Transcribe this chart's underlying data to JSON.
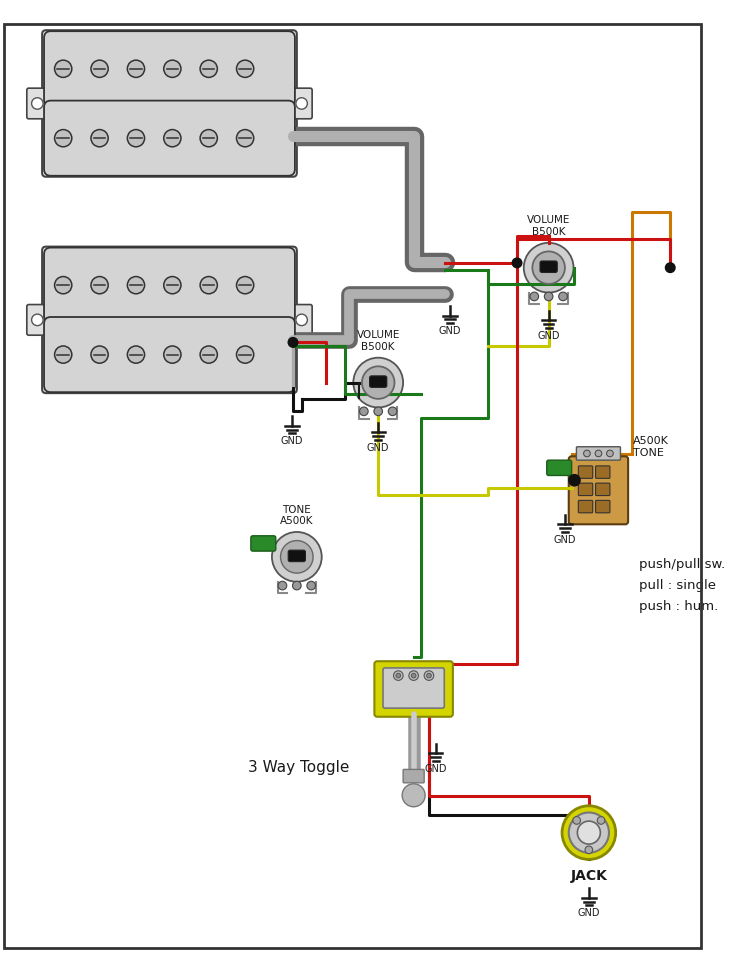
{
  "bg_color": "#ffffff",
  "lc": "#1a1a1a",
  "pickup_fill": "#d4d4d4",
  "frame_fill": "#f0f0f0",
  "gray_dark": "#777777",
  "gray_light": "#b0b0b0",
  "red": "#cc1111",
  "green": "#1a7a1a",
  "black": "#111111",
  "yellow": "#c8c800",
  "orange": "#cc7700",
  "pot_fill": "#d0d0d0",
  "pot_inner": "#b0b0b0",
  "knob_fill": "#555555",
  "lug_fill": "#999999",
  "pushpull_fill": "#cc9944",
  "pushpull_border": "#5c3d10",
  "pin_fill": "#9b6c25",
  "toggle_fill": "#d4d400",
  "jack_fill": "#d4d400",
  "green_cap": "#2a8a2a",
  "label_gnd": "GND",
  "label_jack": "JACK",
  "label_3way": "3 Way Toggle",
  "label_pushpull": "push/pull sw.\npull : single\npush : hum.",
  "label_a500k": "A500K\nTONE",
  "figsize": [
    7.36,
    9.72
  ],
  "dpi": 100
}
